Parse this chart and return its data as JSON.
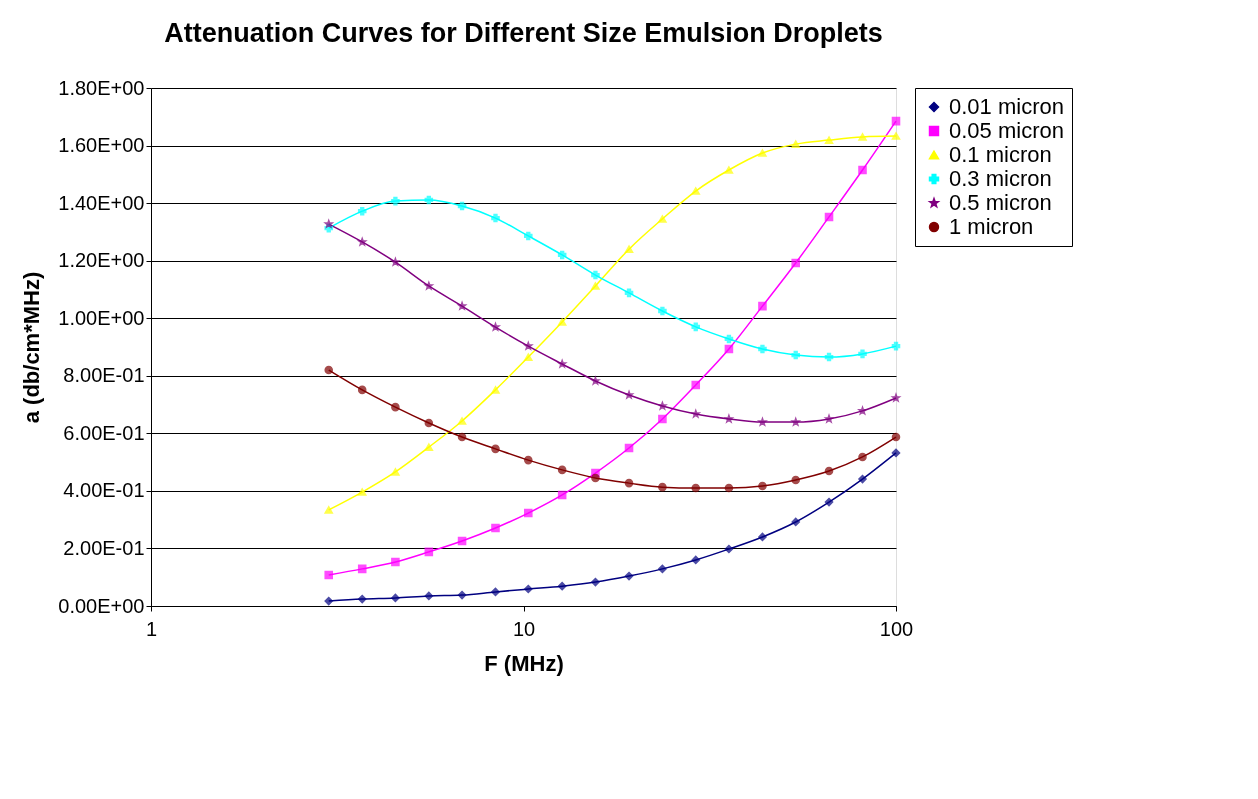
{
  "chart_data": {
    "type": "line",
    "title": "Attenuation Curves for Different Size Emulsion Droplets",
    "xlabel": "F (MHz)",
    "ylabel": "a (db/cm*MHz)",
    "log": "x",
    "grid": "y",
    "legend": "right",
    "line_style": "solid",
    "x": [
      3,
      3.69,
      4.53,
      5.57,
      6.84,
      8.41,
      10.3,
      12.7,
      15.6,
      19.2,
      23.6,
      29.0,
      35.6,
      43.8,
      53.8,
      66.1,
      81.3,
      100
    ],
    "xlim": [
      1,
      100
    ],
    "xticks": [
      1,
      10,
      100
    ],
    "ylim": [
      0,
      1.8
    ],
    "yticks": [
      {
        "value": 0,
        "label": "0.00E+00"
      },
      {
        "value": 0.2,
        "label": "2.00E-01"
      },
      {
        "value": 0.4,
        "label": "4.00E-01"
      },
      {
        "value": 0.6,
        "label": "6.00E-01"
      },
      {
        "value": 0.8,
        "label": "8.00E-01"
      },
      {
        "value": 1.0,
        "label": "1.00E+00"
      },
      {
        "value": 1.2,
        "label": "1.20E+00"
      },
      {
        "value": 1.4,
        "label": "1.40E+00"
      },
      {
        "value": 1.6,
        "label": "1.60E+00"
      },
      {
        "value": 1.8,
        "label": "1.80E+00"
      }
    ],
    "series": [
      {
        "name": "0.01 micron",
        "color": "#000080",
        "marker": "diamond",
        "values": [
          0.017,
          0.024,
          0.028,
          0.035,
          0.038,
          0.049,
          0.059,
          0.069,
          0.083,
          0.104,
          0.129,
          0.16,
          0.198,
          0.24,
          0.292,
          0.361,
          0.441,
          0.532
        ]
      },
      {
        "name": "0.05 micron",
        "color": "#ff00ff",
        "marker": "square",
        "values": [
          0.108,
          0.129,
          0.153,
          0.188,
          0.226,
          0.271,
          0.323,
          0.386,
          0.462,
          0.549,
          0.65,
          0.768,
          0.893,
          1.042,
          1.192,
          1.352,
          1.515,
          1.685
        ]
      },
      {
        "name": "0.1 micron",
        "color": "#ffff00",
        "marker": "triangle",
        "values": [
          0.334,
          0.396,
          0.466,
          0.552,
          0.643,
          0.751,
          0.865,
          0.987,
          1.112,
          1.24,
          1.345,
          1.442,
          1.515,
          1.574,
          1.605,
          1.619,
          1.63,
          1.633
        ]
      },
      {
        "name": "0.3 micron",
        "color": "#00ffff",
        "marker": "cross",
        "values": [
          1.313,
          1.372,
          1.407,
          1.411,
          1.39,
          1.348,
          1.286,
          1.22,
          1.15,
          1.088,
          1.025,
          0.97,
          0.928,
          0.893,
          0.872,
          0.865,
          0.876,
          0.903
        ]
      },
      {
        "name": "0.5 micron",
        "color": "#800080",
        "marker": "star",
        "values": [
          1.327,
          1.265,
          1.195,
          1.112,
          1.042,
          0.969,
          0.903,
          0.841,
          0.782,
          0.733,
          0.695,
          0.667,
          0.65,
          0.639,
          0.639,
          0.65,
          0.678,
          0.723
        ]
      },
      {
        "name": "1 micron",
        "color": "#800000",
        "marker": "circle",
        "values": [
          0.82,
          0.751,
          0.691,
          0.636,
          0.587,
          0.546,
          0.507,
          0.473,
          0.445,
          0.427,
          0.413,
          0.41,
          0.41,
          0.417,
          0.438,
          0.469,
          0.518,
          0.587
        ]
      }
    ]
  }
}
